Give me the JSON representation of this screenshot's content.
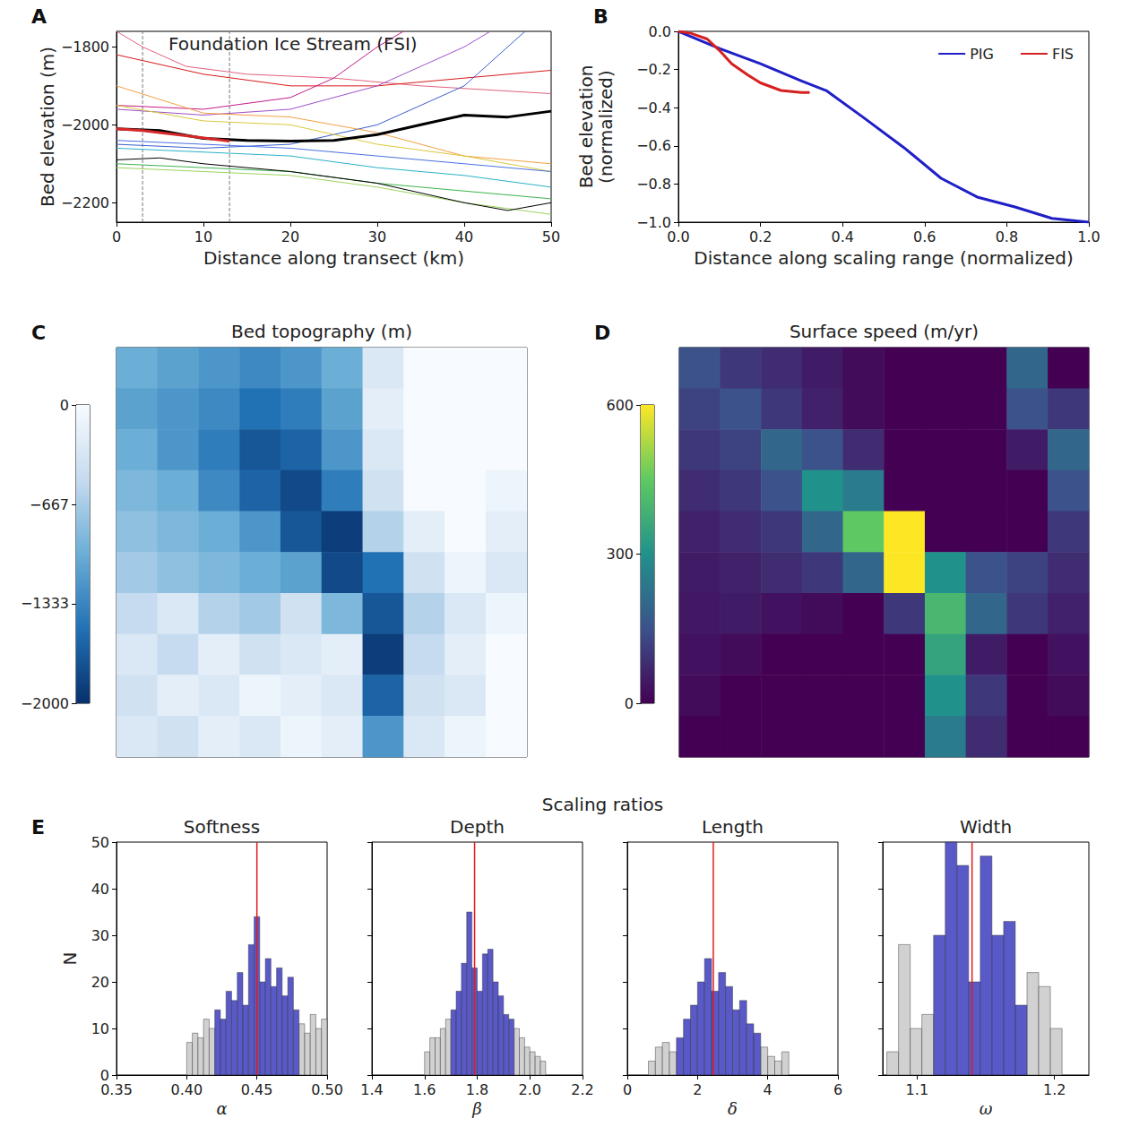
{
  "suptitle": "Scaling ratios",
  "chart_data": [
    {
      "type": "line",
      "panel_label": "A",
      "title": "Foundation Ice Stream (FSI)",
      "xlabel": "Distance along transect (km)",
      "ylabel": "Bed elevation (m)",
      "xlim": [
        0,
        50
      ],
      "xticks": [
        0,
        10,
        20,
        30,
        40,
        50
      ],
      "ylim": [
        -2250,
        -1760
      ],
      "yticks": [
        {
          "value": -2200,
          "label": "−2200"
        },
        {
          "value": -2000,
          "label": "−2000"
        },
        {
          "value": -1800,
          "label": "−1800"
        }
      ],
      "vlines": [
        3,
        13
      ],
      "series": [
        {
          "color": "#e0607e",
          "x": [
            0,
            3,
            8,
            15,
            25,
            35,
            50
          ],
          "values": [
            -1760,
            -1800,
            -1850,
            -1870,
            -1880,
            -1900,
            -1920
          ]
        },
        {
          "color": "#d7191c",
          "x": [
            0,
            10,
            20,
            30,
            40,
            50
          ],
          "values": [
            -1820,
            -1870,
            -1900,
            -1900,
            -1880,
            -1860
          ]
        },
        {
          "color": "#c51b8a",
          "x": [
            0,
            10,
            20,
            25,
            30,
            33
          ],
          "values": [
            -1950,
            -1960,
            -1930,
            -1880,
            -1800,
            -1760
          ]
        },
        {
          "color": "#9e4fc9",
          "x": [
            0,
            10,
            20,
            30,
            40,
            43
          ],
          "values": [
            -1960,
            -1975,
            -1960,
            -1900,
            -1800,
            -1760
          ]
        },
        {
          "color": "#3a5fcd",
          "x": [
            0,
            10,
            20,
            30,
            40,
            47
          ],
          "values": [
            -2050,
            -2060,
            -2050,
            -2000,
            -1900,
            -1760
          ]
        },
        {
          "color": "#f4a040",
          "x": [
            0,
            10,
            20,
            30,
            40,
            50
          ],
          "values": [
            -1900,
            -1970,
            -1980,
            -2020,
            -2080,
            -2100
          ]
        },
        {
          "color": "#d9c83a",
          "x": [
            0,
            10,
            20,
            30,
            40,
            50
          ],
          "values": [
            -1950,
            -1990,
            -2000,
            -2050,
            -2080,
            -2120
          ]
        },
        {
          "color": "#4a6fe3",
          "x": [
            0,
            10,
            20,
            30,
            40,
            50
          ],
          "values": [
            -2040,
            -2050,
            -2060,
            -2080,
            -2100,
            -2120
          ]
        },
        {
          "color": "#2ab0c8",
          "x": [
            0,
            10,
            20,
            30,
            40,
            50
          ],
          "values": [
            -2060,
            -2070,
            -2080,
            -2110,
            -2130,
            -2160
          ]
        },
        {
          "color": "#3cb44b",
          "x": [
            0,
            10,
            20,
            30,
            40,
            50
          ],
          "values": [
            -2100,
            -2110,
            -2120,
            -2150,
            -2170,
            -2190
          ]
        },
        {
          "color": "#9bd35a",
          "x": [
            0,
            10,
            20,
            30,
            40,
            50
          ],
          "values": [
            -2110,
            -2120,
            -2130,
            -2160,
            -2200,
            -2230
          ]
        },
        {
          "color": "#000000",
          "x": [
            0,
            5,
            10,
            20,
            30,
            40,
            45,
            50
          ],
          "values": [
            -2090,
            -2085,
            -2100,
            -2120,
            -2150,
            -2200,
            -2220,
            -2200
          ]
        },
        {
          "color": "#000000",
          "line_style": "bold",
          "x": [
            0,
            5,
            10,
            15,
            20,
            25,
            30,
            35,
            40,
            45,
            50
          ],
          "values": [
            -2010,
            -2015,
            -2035,
            -2040,
            -2042,
            -2040,
            -2025,
            -2000,
            -1975,
            -1980,
            -1965
          ]
        },
        {
          "color": "#d62728",
          "line_style": "bold",
          "x": [
            0,
            3,
            8,
            13
          ],
          "values": [
            -2010,
            -2015,
            -2028,
            -2042
          ]
        }
      ]
    },
    {
      "type": "line",
      "panel_label": "B",
      "xlabel": "Distance along scaling range (normalized)",
      "ylabel": "Bed elevation (normalized)",
      "xlim": [
        0,
        1
      ],
      "xticks": [
        {
          "value": 0,
          "label": "0.0"
        },
        {
          "value": 0.2,
          "label": "0.2"
        },
        {
          "value": 0.4,
          "label": "0.4"
        },
        {
          "value": 0.6,
          "label": "0.6"
        },
        {
          "value": 0.8,
          "label": "0.8"
        },
        {
          "value": 1,
          "label": "1.0"
        }
      ],
      "ylim": [
        -1,
        0
      ],
      "yticks": [
        {
          "value": -1,
          "label": "−1.0"
        },
        {
          "value": -0.8,
          "label": "−0.8"
        },
        {
          "value": -0.6,
          "label": "−0.6"
        },
        {
          "value": -0.4,
          "label": "−0.4"
        },
        {
          "value": -0.2,
          "label": "−0.2"
        },
        {
          "value": 0,
          "label": "0.0"
        }
      ],
      "legend": "upper right",
      "series": [
        {
          "name": "PIG",
          "color": "#1f1fc8",
          "line_style": "bold",
          "x": [
            0,
            0.1,
            0.2,
            0.3,
            0.36,
            0.45,
            0.55,
            0.64,
            0.73,
            0.82,
            0.91,
            1.0
          ],
          "values": [
            0,
            -0.09,
            -0.17,
            -0.26,
            -0.31,
            -0.45,
            -0.61,
            -0.77,
            -0.87,
            -0.92,
            -0.98,
            -1.0
          ]
        },
        {
          "name": "FIS",
          "color": "#d62020",
          "line_style": "bold",
          "x": [
            0,
            0.03,
            0.07,
            0.1,
            0.13,
            0.17,
            0.2,
            0.25,
            0.3,
            0.32
          ],
          "values": [
            0,
            -0.01,
            -0.04,
            -0.1,
            -0.17,
            -0.23,
            -0.27,
            -0.31,
            -0.32,
            -0.32
          ]
        }
      ]
    },
    {
      "type": "heatmap",
      "panel_label": "C",
      "title": "Bed topography (m)",
      "cells": [
        [
          -1000,
          -1100,
          -1200,
          -1300,
          -1200,
          -1000,
          -300,
          0,
          0,
          0
        ],
        [
          -1100,
          -1200,
          -1300,
          -1500,
          -1400,
          -1100,
          -200,
          0,
          0,
          0
        ],
        [
          -1000,
          -1200,
          -1400,
          -1700,
          -1600,
          -1200,
          -300,
          0,
          0,
          0
        ],
        [
          -900,
          -1000,
          -1300,
          -1600,
          -1800,
          -1400,
          -400,
          0,
          0,
          -100
        ],
        [
          -800,
          -900,
          -1000,
          -1200,
          -1700,
          -1900,
          -600,
          -200,
          0,
          -200
        ],
        [
          -700,
          -800,
          -900,
          -1000,
          -1100,
          -1800,
          -1500,
          -400,
          -100,
          -300
        ],
        [
          -500,
          -300,
          -600,
          -700,
          -400,
          -900,
          -1700,
          -600,
          -300,
          -100
        ],
        [
          -300,
          -500,
          -200,
          -400,
          -300,
          -200,
          -1900,
          -500,
          -200,
          0
        ],
        [
          -400,
          -200,
          -300,
          -100,
          -200,
          -300,
          -1600,
          -400,
          -300,
          0
        ],
        [
          -300,
          -400,
          -200,
          -300,
          -100,
          -200,
          -1200,
          -300,
          -100,
          0
        ]
      ],
      "colorbar": {
        "range": [
          -2000,
          0
        ],
        "ticks": [
          0,
          {
            "value": -667,
            "label": "−667"
          },
          {
            "value": -1333,
            "label": "−1333"
          },
          {
            "value": -2000,
            "label": "−2000"
          }
        ],
        "colors": [
          "#08306b",
          "#2171b5",
          "#6baed6",
          "#c6dbef",
          "#f7fbff"
        ]
      }
    },
    {
      "type": "heatmap",
      "panel_label": "D",
      "title": "Surface speed (m/yr)",
      "cells": [
        [
          150,
          100,
          80,
          50,
          20,
          0,
          0,
          0,
          200,
          0
        ],
        [
          120,
          150,
          100,
          60,
          20,
          0,
          0,
          0,
          150,
          100
        ],
        [
          100,
          120,
          200,
          150,
          80,
          0,
          0,
          0,
          50,
          200
        ],
        [
          80,
          100,
          150,
          300,
          250,
          0,
          0,
          0,
          0,
          150
        ],
        [
          60,
          80,
          100,
          200,
          450,
          650,
          0,
          0,
          0,
          100
        ],
        [
          50,
          60,
          80,
          100,
          200,
          600,
          300,
          150,
          120,
          80
        ],
        [
          40,
          50,
          30,
          20,
          0,
          100,
          400,
          200,
          100,
          60
        ],
        [
          30,
          20,
          0,
          0,
          0,
          0,
          350,
          50,
          0,
          30
        ],
        [
          20,
          0,
          0,
          0,
          0,
          0,
          300,
          100,
          0,
          20
        ],
        [
          0,
          0,
          0,
          0,
          0,
          0,
          250,
          80,
          0,
          0
        ]
      ],
      "colorbar": {
        "range": [
          0,
          600
        ],
        "ticks": [
          0,
          300,
          600
        ],
        "colors": [
          "#440154",
          "#3b528b",
          "#21918c",
          "#5ec962",
          "#fde725"
        ]
      }
    },
    {
      "type": "histogram",
      "panel_label": "E",
      "title": "Softness",
      "xlabel": "α",
      "ylabel": "N",
      "xlim": [
        0.35,
        0.5
      ],
      "xticks": [
        {
          "value": 0.35,
          "label": "0.35"
        },
        {
          "value": 0.4,
          "label": "0.40"
        },
        {
          "value": 0.45,
          "label": "0.45"
        },
        {
          "value": 0.5,
          "label": "0.50"
        }
      ],
      "ylim": [
        0,
        50
      ],
      "yticks": [
        0,
        10,
        20,
        30,
        40,
        50
      ],
      "bins": [
        0.4,
        0.404,
        0.408,
        0.412,
        0.416,
        0.42,
        0.424,
        0.428,
        0.432,
        0.436,
        0.44,
        0.444,
        0.448,
        0.452,
        0.456,
        0.46,
        0.464,
        0.468,
        0.472,
        0.476,
        0.48,
        0.484,
        0.488,
        0.492,
        0.496,
        0.5
      ],
      "series": [
        {
          "color": "#cccccc",
          "values": [
            7,
            9,
            8,
            12,
            10,
            null,
            null,
            null,
            null,
            null,
            null,
            null,
            null,
            null,
            null,
            null,
            null,
            null,
            null,
            null,
            11,
            9,
            13,
            10,
            12
          ]
        },
        {
          "color": "#4747c2",
          "values": [
            null,
            null,
            null,
            null,
            null,
            14,
            12,
            18,
            16,
            22,
            15,
            28,
            34,
            20,
            25,
            19,
            23,
            17,
            21,
            14,
            null,
            null,
            null,
            null,
            null
          ]
        }
      ],
      "reference": {
        "value": 0.45,
        "color": "#e41a1c"
      }
    },
    {
      "type": "histogram",
      "title": "Depth",
      "xlabel": "β",
      "tick_labels": "x",
      "xlim": [
        1.4,
        2.2
      ],
      "xticks": [
        1.4,
        1.6,
        1.8,
        {
          "value": 2.0,
          "label": "2.0"
        },
        2.2
      ],
      "ylim": [
        0,
        50
      ],
      "yticks": [
        0,
        10,
        20,
        30,
        40,
        50
      ],
      "bins": [
        1.6,
        1.62,
        1.64,
        1.66,
        1.68,
        1.7,
        1.72,
        1.74,
        1.76,
        1.78,
        1.8,
        1.82,
        1.84,
        1.86,
        1.88,
        1.9,
        1.92,
        1.94,
        1.96,
        1.98,
        2.0,
        2.02,
        2.04,
        2.06
      ],
      "series": [
        {
          "color": "#cccccc",
          "values": [
            5,
            8,
            8,
            10,
            12,
            null,
            null,
            null,
            null,
            null,
            null,
            null,
            null,
            null,
            null,
            null,
            null,
            10,
            8,
            6,
            5,
            4,
            3
          ]
        },
        {
          "color": "#4747c2",
          "values": [
            null,
            null,
            null,
            null,
            null,
            14,
            18,
            24,
            35,
            23,
            18,
            26,
            27,
            20,
            17,
            13,
            12,
            null,
            null,
            null,
            null,
            null,
            null
          ]
        }
      ],
      "reference": {
        "value": 1.79,
        "color": "#e41a1c"
      }
    },
    {
      "type": "histogram",
      "title": "Length",
      "xlabel": "δ",
      "tick_labels": "x",
      "xlim": [
        0,
        6
      ],
      "xticks": [
        0,
        2,
        4,
        6
      ],
      "ylim": [
        0,
        50
      ],
      "yticks": [
        0,
        10,
        20,
        30,
        40,
        50
      ],
      "bins": [
        0.6,
        0.8,
        1.0,
        1.2,
        1.4,
        1.6,
        1.8,
        2.0,
        2.2,
        2.4,
        2.6,
        2.8,
        3.0,
        3.2,
        3.4,
        3.6,
        3.8,
        4.0,
        4.2,
        4.4,
        4.6
      ],
      "series": [
        {
          "color": "#cccccc",
          "values": [
            3,
            6,
            7,
            5,
            null,
            null,
            null,
            null,
            null,
            null,
            null,
            null,
            null,
            null,
            null,
            null,
            6,
            4,
            3,
            5
          ]
        },
        {
          "color": "#4747c2",
          "values": [
            null,
            null,
            null,
            null,
            8,
            12,
            15,
            20,
            25,
            18,
            22,
            19,
            14,
            16,
            11,
            9,
            null,
            null,
            null,
            null
          ]
        }
      ],
      "reference": {
        "value": 2.45,
        "color": "#e41a1c"
      }
    },
    {
      "type": "histogram",
      "title": "Width",
      "xlabel": "ω",
      "tick_labels": "x",
      "xlim": [
        1.075,
        1.225
      ],
      "xticks": [
        1.1,
        1.2
      ],
      "ylim": [
        0,
        50
      ],
      "yticks": [
        0,
        10,
        20,
        30,
        40,
        50
      ],
      "bins": [
        1.078,
        1.0865,
        1.095,
        1.1035,
        1.112,
        1.1205,
        1.129,
        1.1375,
        1.146,
        1.1545,
        1.163,
        1.1715,
        1.18,
        1.1885,
        1.197,
        1.2055
      ],
      "series": [
        {
          "color": "#cccccc",
          "values": [
            5,
            28,
            10,
            13,
            null,
            null,
            null,
            null,
            null,
            null,
            null,
            null,
            22,
            19,
            10
          ]
        },
        {
          "color": "#4747c2",
          "values": [
            null,
            null,
            null,
            null,
            30,
            50,
            45,
            20,
            47,
            30,
            33,
            15,
            null,
            null,
            null
          ]
        }
      ],
      "reference": {
        "value": 1.14,
        "color": "#e41a1c"
      }
    }
  ]
}
